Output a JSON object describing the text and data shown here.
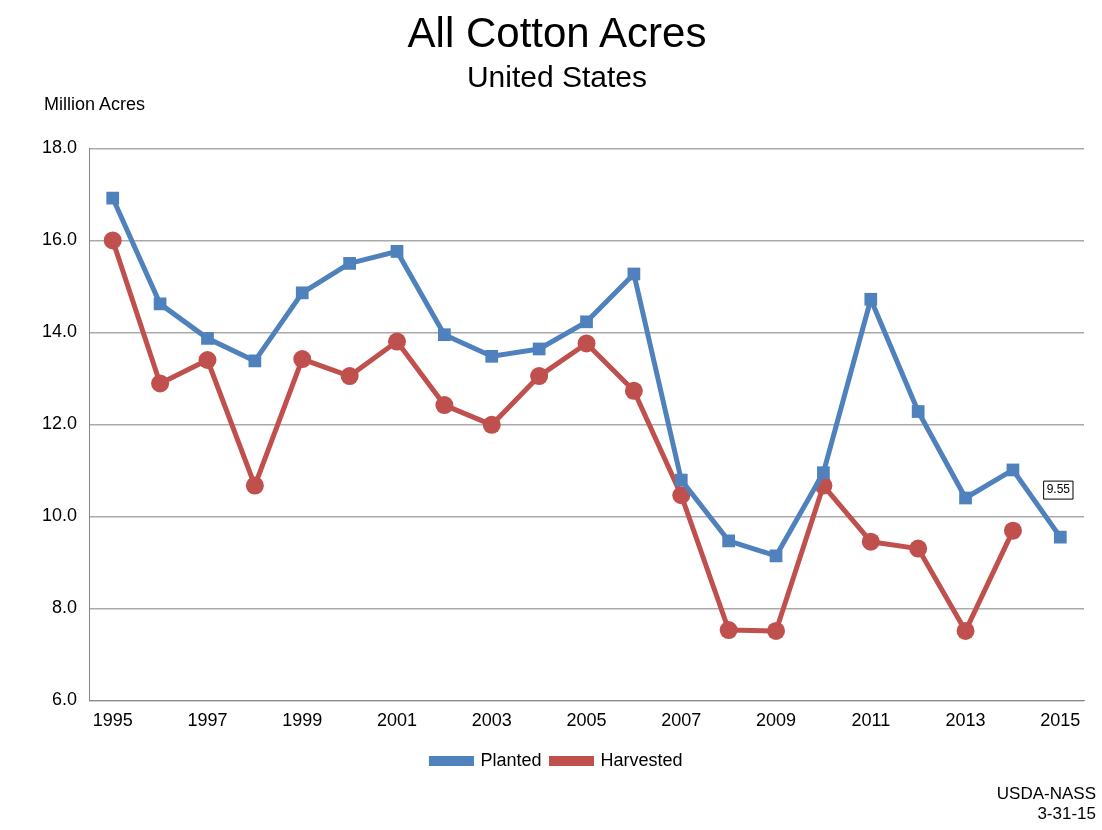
{
  "chart_data": {
    "type": "line",
    "title": "All Cotton Acres",
    "subtitle": "United States",
    "ylabel": "Million Acres",
    "categories": [
      "1995",
      null,
      "1997",
      null,
      "1999",
      null,
      "2001",
      null,
      "2003",
      null,
      "2005",
      null,
      "2007",
      null,
      "2009",
      null,
      "2011",
      null,
      "2013",
      null,
      "2015"
    ],
    "series": [
      {
        "name": "Planted",
        "color": "#4f81bd",
        "marker": "square",
        "values": [
          16.92,
          14.62,
          13.87,
          13.38,
          14.86,
          15.5,
          15.76,
          13.95,
          13.48,
          13.64,
          14.23,
          15.27,
          10.79,
          9.47,
          9.14,
          10.95,
          14.72,
          12.28,
          10.4,
          11.01,
          9.55
        ],
        "value_labels": [
          null,
          null,
          null,
          null,
          null,
          null,
          null,
          null,
          null,
          null,
          null,
          null,
          null,
          null,
          null,
          null,
          null,
          null,
          null,
          null,
          "9.55"
        ]
      },
      {
        "name": "Harvested",
        "color": "#c0504d",
        "marker": "circle",
        "values": [
          16.0,
          12.89,
          13.4,
          10.67,
          13.42,
          13.05,
          13.8,
          12.42,
          11.99,
          13.05,
          13.76,
          12.73,
          10.46,
          7.53,
          7.51,
          10.67,
          9.45,
          9.3,
          7.51,
          9.69,
          null
        ]
      }
    ],
    "ylim": [
      6,
      18
    ],
    "yticks": [
      {
        "value": 6,
        "label": "6.0"
      },
      {
        "value": 8,
        "label": "8.0"
      },
      {
        "value": 10,
        "label": "10.0"
      },
      {
        "value": 12,
        "label": "12.0"
      },
      {
        "value": 14,
        "label": "14.0"
      },
      {
        "value": 16,
        "label": "16.0"
      },
      {
        "value": 18,
        "label": "18.0"
      }
    ],
    "grid": "y",
    "legend": "bottom",
    "line_style": "solid",
    "annotations": [
      "USDA-NASS",
      "3-31-15"
    ]
  }
}
